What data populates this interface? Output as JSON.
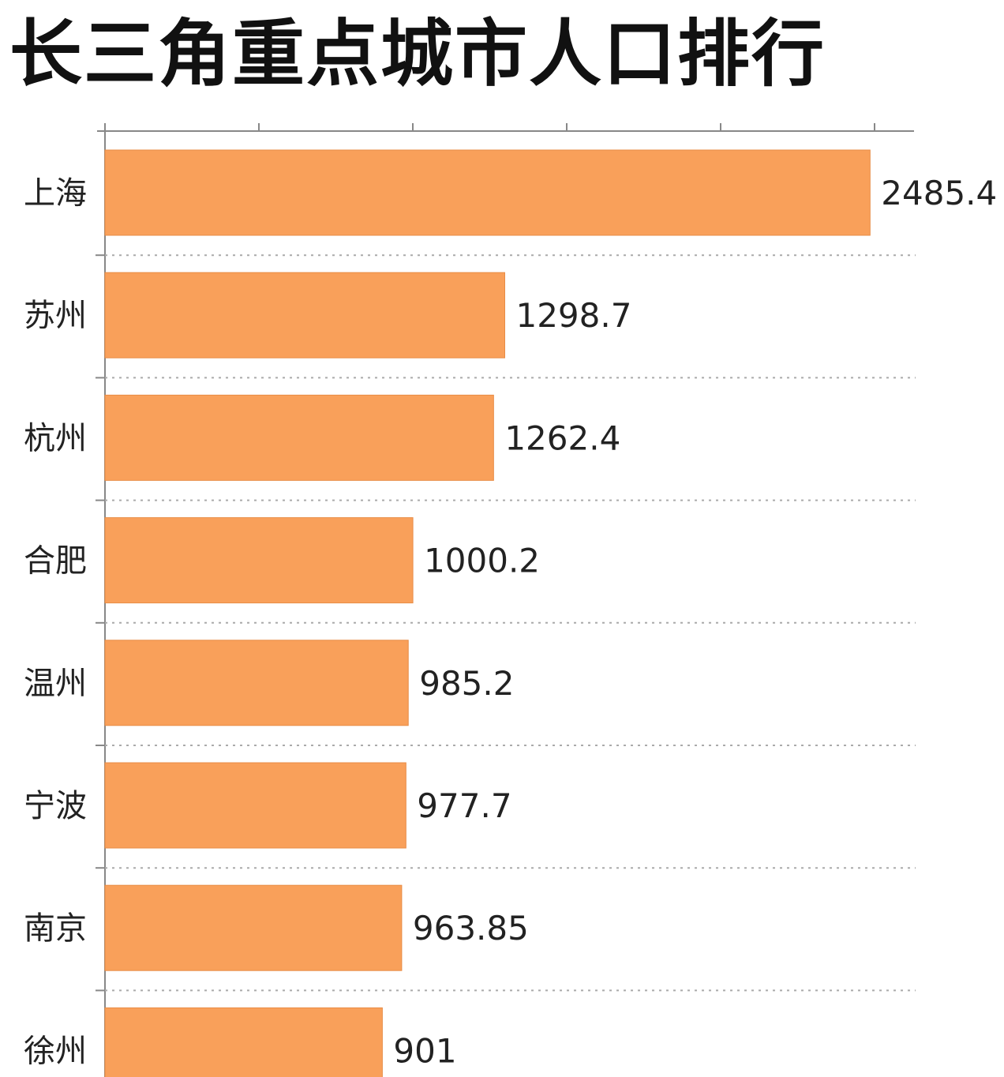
{
  "chart_data": {
    "type": "bar",
    "orientation": "horizontal",
    "title": "长三角重点城市人口排行",
    "categories": [
      "上海",
      "苏州",
      "杭州",
      "合肥",
      "温州",
      "宁波",
      "南京",
      "徐州"
    ],
    "values": [
      2485.4,
      1298.7,
      1262.4,
      1000.2,
      985.2,
      977.7,
      963.85,
      901
    ],
    "value_labels": [
      "2485.4",
      "1298.7",
      "1262.4",
      "1000.2",
      "985.2",
      "977.7",
      "963.85",
      "901"
    ],
    "xlim": [
      0,
      2500
    ],
    "x_ticks": [
      0,
      500,
      1000,
      1500,
      2000,
      2500
    ],
    "x_tick_labels_visible": false,
    "grid": "dotted horizontal separators",
    "bar_color": "#f9a05a"
  }
}
